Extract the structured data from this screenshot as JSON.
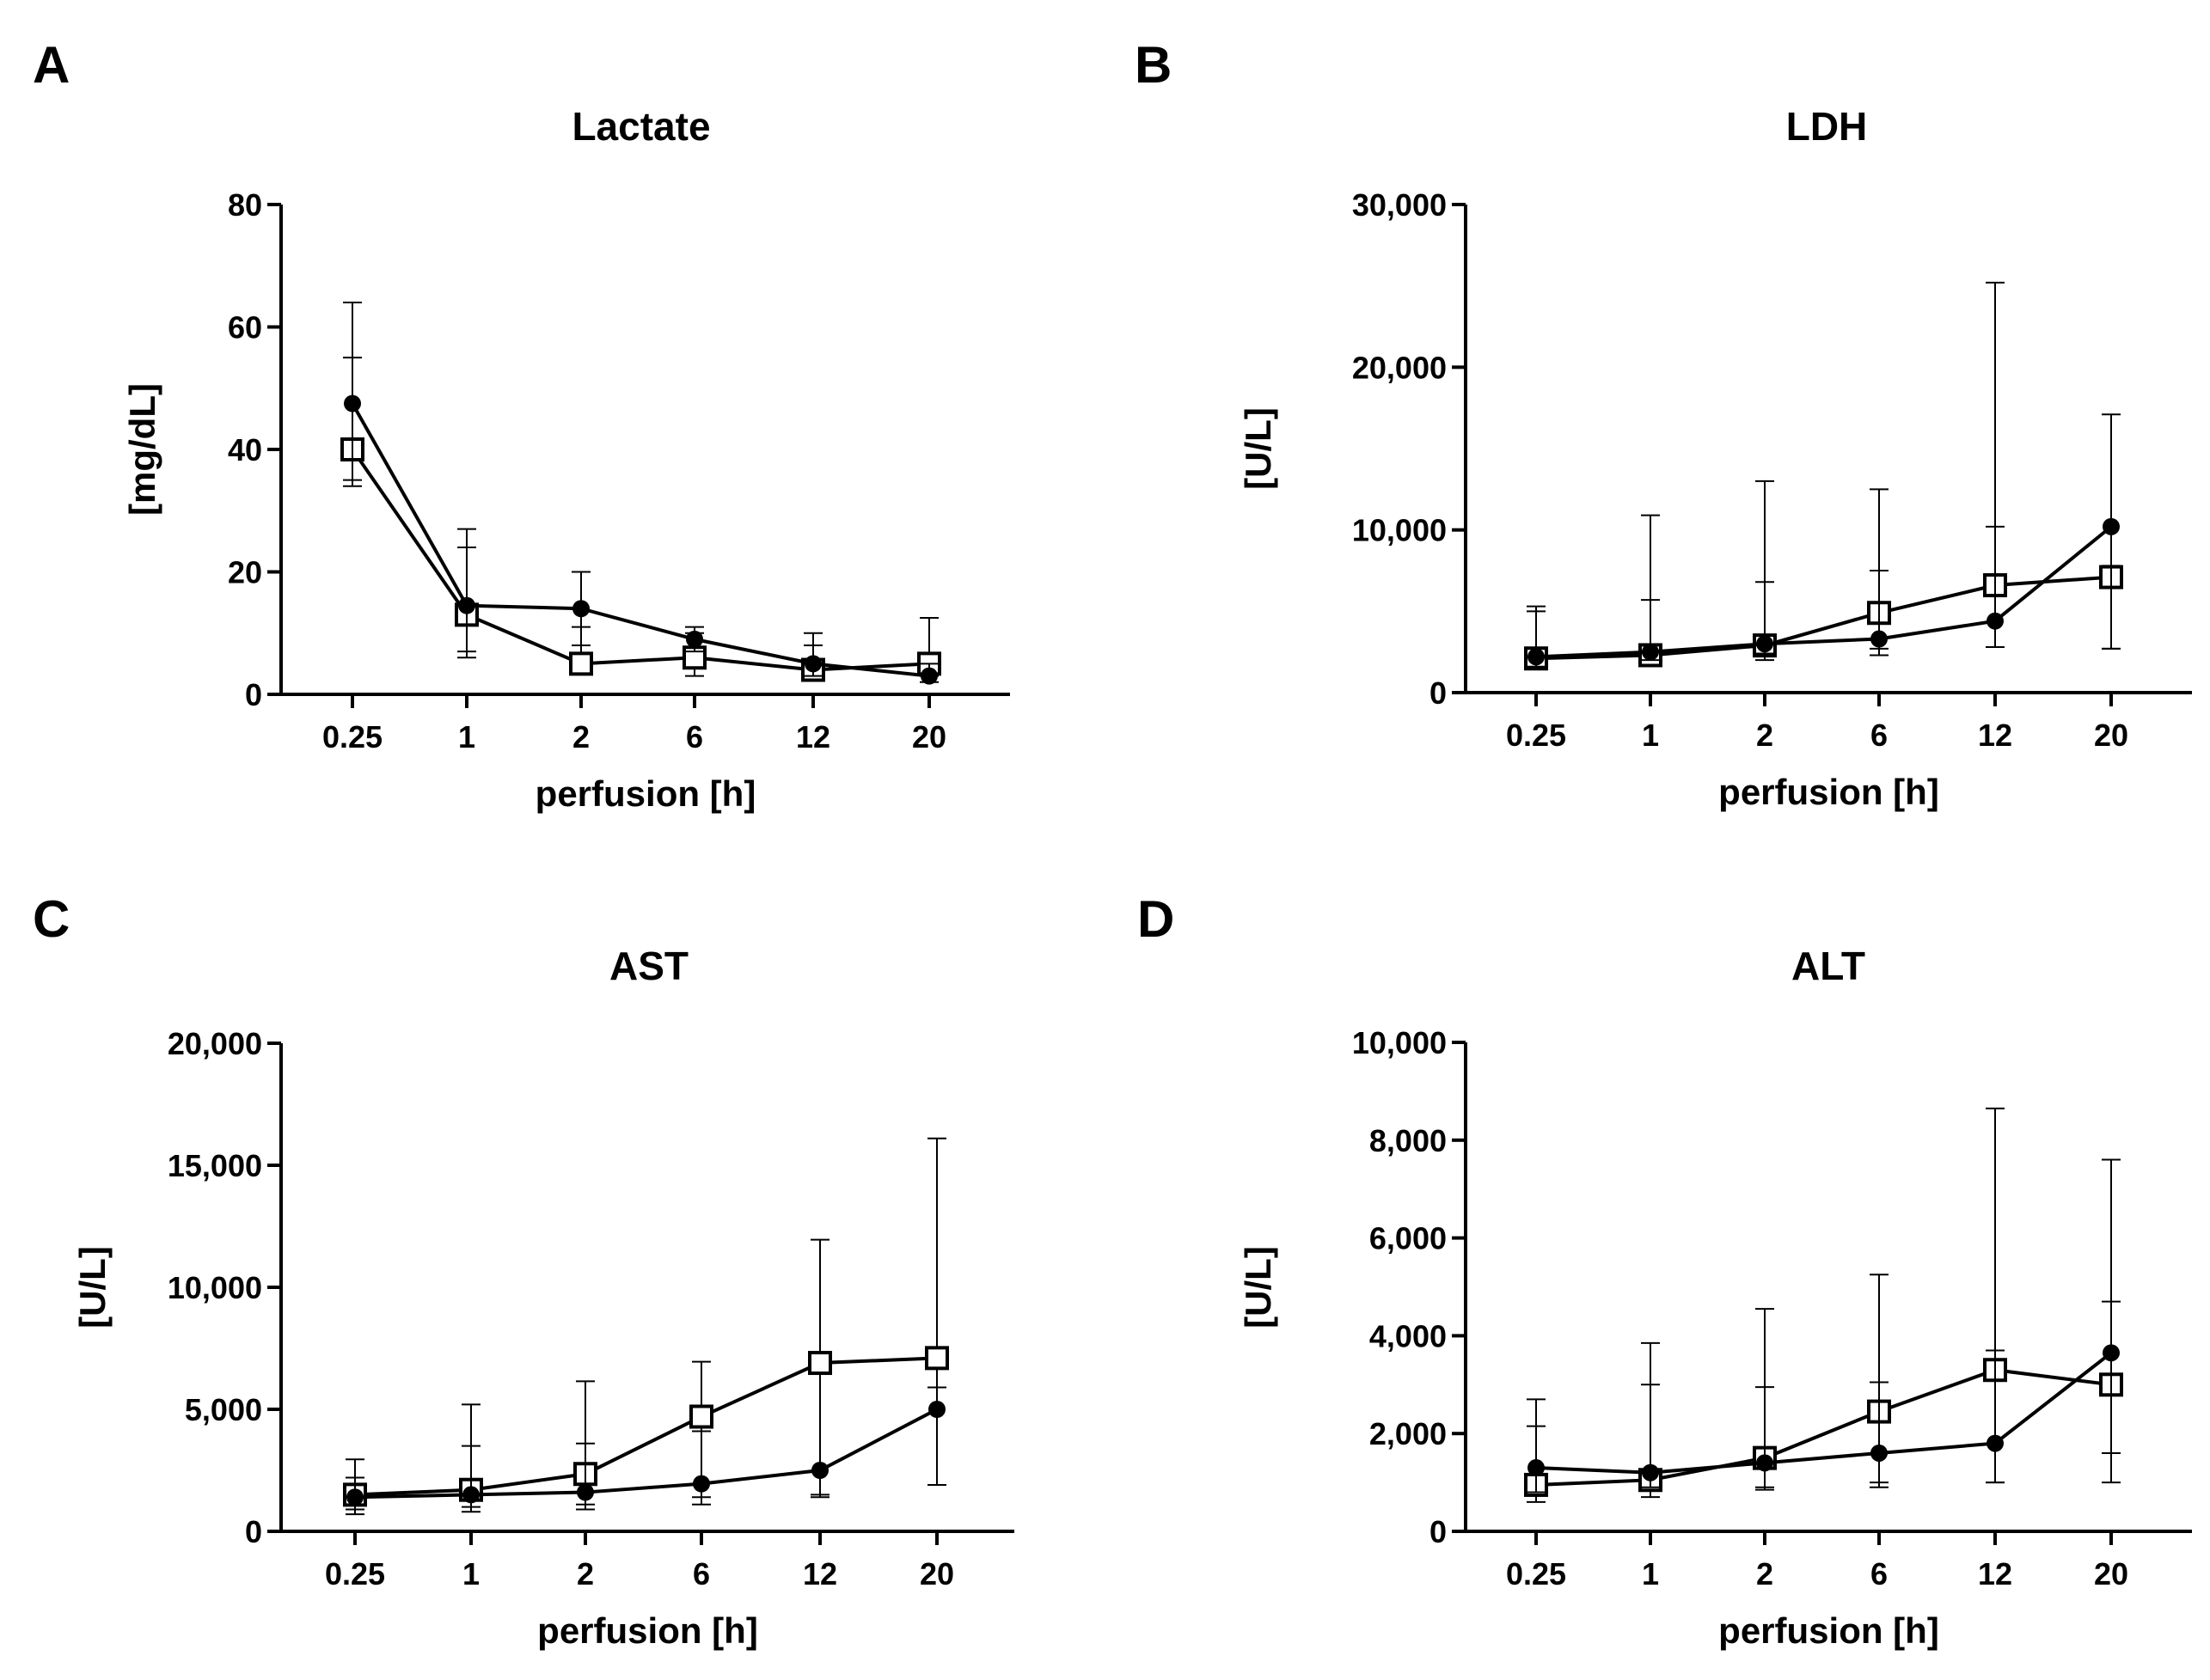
{
  "chart_data": [
    {
      "panel": "A",
      "type": "line",
      "title": "Lactate",
      "xlabel": "perfusion [h]",
      "ylabel": "[mg/dL]",
      "categories": [
        "0.25",
        "1",
        "2",
        "6",
        "12",
        "20"
      ],
      "ylim": [
        0,
        80
      ],
      "yticks": [
        0,
        20,
        40,
        60,
        80
      ],
      "ytick_labels": [
        "0",
        "20",
        "40",
        "60",
        "80"
      ],
      "series": [
        {
          "marker": "filled-circle",
          "values": [
            47.5,
            14.5,
            14,
            9,
            5,
            3
          ],
          "err_up": [
            64,
            24,
            20,
            11,
            10,
            5
          ],
          "err_low": [
            35,
            7,
            8,
            7,
            3,
            2
          ]
        },
        {
          "marker": "open-square",
          "values": [
            40,
            13,
            5,
            6,
            4,
            5
          ],
          "err_up": [
            55,
            27,
            11,
            10,
            8,
            12.5
          ],
          "err_low": [
            34,
            6,
            4,
            3,
            3,
            3
          ]
        }
      ]
    },
    {
      "panel": "B",
      "type": "line",
      "title": "LDH",
      "xlabel": "perfusion [h]",
      "ylabel": "[U/L]",
      "categories": [
        "0.25",
        "1",
        "2",
        "6",
        "12",
        "20"
      ],
      "ylim": [
        0,
        30000
      ],
      "yticks": [
        0,
        10000,
        20000,
        30000
      ],
      "ytick_labels": [
        "0",
        "10,000",
        "20,000",
        "30,000"
      ],
      "series": [
        {
          "marker": "filled-circle",
          "values": [
            2200,
            2500,
            3000,
            3300,
            4400,
            10200
          ],
          "err_up": [
            5300,
            5700,
            6800,
            7500,
            10200,
            17100
          ],
          "err_low": [
            1600,
            2000,
            2400,
            2300,
            2800,
            2700
          ]
        },
        {
          "marker": "open-square",
          "values": [
            2100,
            2300,
            2900,
            4900,
            6600,
            7100
          ],
          "err_up": [
            5000,
            10900,
            13000,
            12500,
            25200,
            7800
          ],
          "err_low": [
            1600,
            1800,
            2000,
            2700,
            2800,
            2700
          ]
        }
      ]
    },
    {
      "panel": "C",
      "type": "line",
      "title": "AST",
      "xlabel": "perfusion [h]",
      "ylabel": "[U/L]",
      "categories": [
        "0.25",
        "1",
        "2",
        "6",
        "12",
        "20"
      ],
      "ylim": [
        0,
        20000
      ],
      "yticks": [
        0,
        5000,
        10000,
        15000,
        20000
      ],
      "ytick_labels": [
        "0",
        "5,000",
        "10,000",
        "15,000",
        "20,000"
      ],
      "series": [
        {
          "marker": "filled-circle",
          "values": [
            1400,
            1500,
            1600,
            1950,
            2500,
            5000
          ],
          "err_up": [
            2200,
            3500,
            3600,
            4100,
            6500,
            5900
          ],
          "err_low": [
            700,
            800,
            900,
            1100,
            1400,
            1900
          ]
        },
        {
          "marker": "open-square",
          "values": [
            1500,
            1700,
            2350,
            4700,
            6900,
            7100
          ],
          "err_up": [
            2950,
            5200,
            6150,
            6950,
            11950,
            16100
          ],
          "err_low": [
            900,
            1000,
            1100,
            1400,
            1500,
            1900
          ]
        }
      ]
    },
    {
      "panel": "D",
      "type": "line",
      "title": "ALT",
      "xlabel": "perfusion [h]",
      "ylabel": "[U/L]",
      "categories": [
        "0.25",
        "1",
        "2",
        "6",
        "12",
        "20"
      ],
      "ylim": [
        0,
        10000
      ],
      "yticks": [
        0,
        2000,
        4000,
        6000,
        8000,
        10000
      ],
      "ytick_labels": [
        "0",
        "2,000",
        "4,000",
        "6,000",
        "8,000",
        "10,000"
      ],
      "series": [
        {
          "marker": "filled-circle",
          "values": [
            1300,
            1200,
            1400,
            1600,
            1800,
            3650
          ],
          "err_up": [
            2150,
            3000,
            2950,
            3050,
            3700,
            4700
          ],
          "err_low": [
            800,
            900,
            900,
            1000,
            1000,
            1000
          ]
        },
        {
          "marker": "open-square",
          "values": [
            950,
            1050,
            1500,
            2450,
            3300,
            3000
          ],
          "err_up": [
            2700,
            3850,
            4550,
            5250,
            8650,
            7600
          ],
          "err_low": [
            600,
            700,
            850,
            900,
            1000,
            1600
          ]
        }
      ]
    }
  ]
}
